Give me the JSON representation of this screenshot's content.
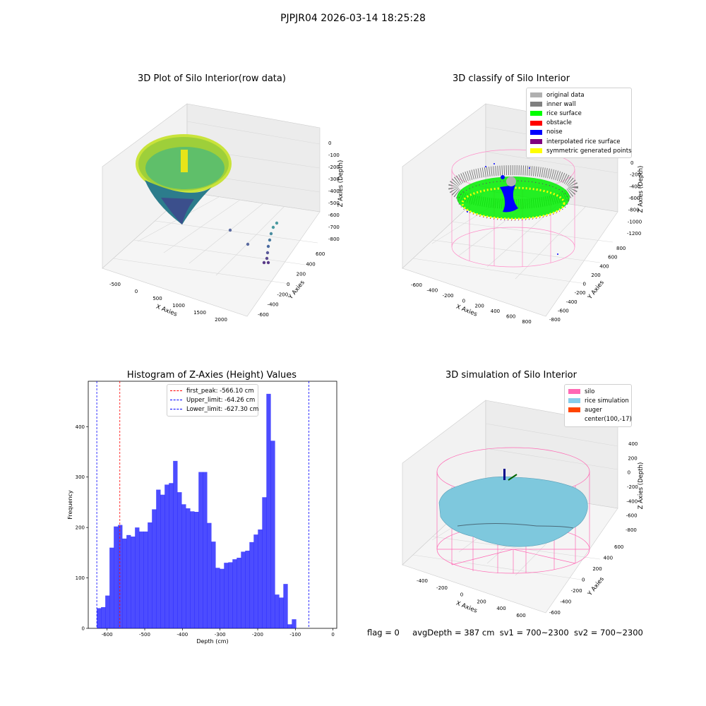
{
  "suptitle": "PJPJR04 2026-03-14 18:25:28",
  "panels": {
    "raw": {
      "title": "3D Plot of Silo Interior(row data)",
      "xlabel": "X Axies",
      "ylabel": "Y Axies",
      "zlabel": "Z Axies (Depth)",
      "x_ticks": [
        "-500",
        "0",
        "500",
        "1000",
        "1500",
        "2000"
      ],
      "y_ticks": [
        "-600",
        "-400",
        "-200",
        "0",
        "200",
        "400",
        "600"
      ],
      "z_ticks": [
        "0",
        "-100",
        "-200",
        "-300",
        "-400",
        "-500",
        "-600",
        "-700",
        "-800"
      ]
    },
    "classify": {
      "title": "3D classify of Silo Interior",
      "xlabel": "X Axies",
      "ylabel": "Y Axies",
      "zlabel": "Z Axies (Depth)",
      "x_ticks": [
        "-600",
        "-400",
        "-200",
        "0",
        "200",
        "400",
        "600",
        "800"
      ],
      "y_ticks": [
        "-800",
        "-600",
        "-400",
        "-200",
        "0",
        "200",
        "400",
        "600",
        "800"
      ],
      "z_ticks": [
        "0",
        "-200",
        "-400",
        "-600",
        "-800",
        "-1000",
        "-1200"
      ],
      "legend": [
        {
          "label": "original data",
          "color": "#b0b0b0"
        },
        {
          "label": "inner wall",
          "color": "#808080"
        },
        {
          "label": "rice surface",
          "color": "#00ff00"
        },
        {
          "label": "obstacle",
          "color": "#ff0000"
        },
        {
          "label": "noise",
          "color": "#0000ff"
        },
        {
          "label": "interpolated rice surface",
          "color": "#800080"
        },
        {
          "label": "symmetric generated points",
          "color": "#ffff00"
        }
      ]
    },
    "simulation": {
      "title": "3D simulation of Silo Interior",
      "xlabel": "X Axies",
      "ylabel": "Y Axies",
      "zlabel": "Z Axies (Depth)",
      "x_ticks": [
        "-400",
        "-200",
        "0",
        "200",
        "400",
        "600"
      ],
      "y_ticks": [
        "-600",
        "-400",
        "-200",
        "0",
        "200",
        "400",
        "600"
      ],
      "z_ticks": [
        "400",
        "200",
        "0",
        "-200",
        "-400",
        "-600",
        "-800"
      ],
      "legend": [
        {
          "label": "silo",
          "color": "#ff69b4"
        },
        {
          "label": "rice simulation",
          "color": "#87ceeb"
        },
        {
          "label": "auger",
          "color": "#ff4500"
        },
        {
          "label": "center(100,-17)",
          "color": ""
        }
      ]
    }
  },
  "status": {
    "flag": "flag = 0",
    "avg_depth": "avgDepth = 387 cm",
    "sv1": "sv1 = 700~2300",
    "sv2": "sv2 = 700~2300"
  },
  "chart_data": [
    {
      "type": "scatter",
      "title": "3D Plot of Silo Interior(row data)",
      "xlabel": "X Axies",
      "ylabel": "Y Axies",
      "zlabel": "Z Axies (Depth)",
      "xlim": [
        -600,
        2200
      ],
      "ylim": [
        -700,
        700
      ],
      "zlim": [
        -850,
        20
      ]
    },
    {
      "type": "scatter",
      "title": "3D classify of Silo Interior",
      "xlabel": "X Axies",
      "ylabel": "Y Axies",
      "zlabel": "Z Axies (Depth)",
      "xlim": [
        -700,
        850
      ],
      "ylim": [
        -850,
        850
      ],
      "zlim": [
        -1300,
        100
      ],
      "series": [
        {
          "name": "original data"
        },
        {
          "name": "inner wall"
        },
        {
          "name": "rice surface"
        },
        {
          "name": "obstacle"
        },
        {
          "name": "noise"
        },
        {
          "name": "interpolated rice surface"
        },
        {
          "name": "symmetric generated points"
        }
      ]
    },
    {
      "type": "bar",
      "title": "Histogram of Z-Axies (Height) Values",
      "xlabel": "Depth (cm)",
      "ylabel": "Frequency",
      "xlim": [
        -650,
        10
      ],
      "ylim": [
        0,
        490
      ],
      "x_ticks": [
        -600,
        -500,
        -400,
        -300,
        -200,
        -100,
        0
      ],
      "y_ticks": [
        0,
        100,
        200,
        300,
        400
      ],
      "bin_start": -627.3,
      "bin_width": 11.26,
      "color": "#0000ff",
      "values": [
        40,
        42,
        65,
        160,
        202,
        205,
        178,
        185,
        182,
        200,
        192,
        192,
        210,
        236,
        275,
        265,
        285,
        288,
        332,
        270,
        246,
        238,
        232,
        231,
        310,
        310,
        209,
        172,
        120,
        118,
        130,
        131,
        137,
        140,
        152,
        154,
        171,
        186,
        196,
        260,
        465,
        372,
        67,
        61,
        88,
        8,
        18
      ],
      "lines": [
        {
          "label": "first_peak: -566.10 cm",
          "x": -566.1,
          "color": "#ff0000"
        },
        {
          "label": "Upper_limit: -64.26 cm",
          "x": -64.26,
          "color": "#0000ff"
        },
        {
          "label": "Lower_limit: -627.30 cm",
          "x": -627.3,
          "color": "#0000ff"
        }
      ]
    },
    {
      "type": "area",
      "title": "3D simulation of Silo Interior",
      "xlabel": "X Axies",
      "ylabel": "Y Axies",
      "zlabel": "Z Axies (Depth)",
      "xlim": [
        -500,
        700
      ],
      "ylim": [
        -700,
        700
      ],
      "zlim": [
        -900,
        450
      ],
      "series": [
        {
          "name": "silo"
        },
        {
          "name": "rice simulation"
        },
        {
          "name": "auger"
        },
        {
          "name": "center(100,-17)"
        }
      ]
    }
  ]
}
